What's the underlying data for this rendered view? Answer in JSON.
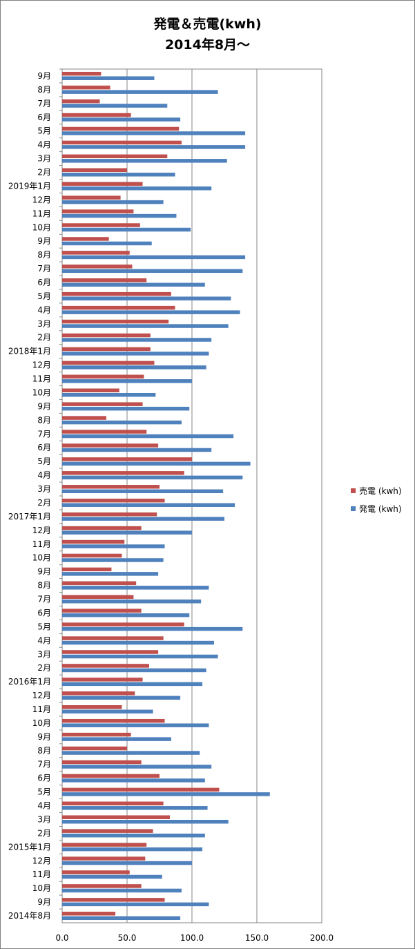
{
  "chart_data": {
    "type": "bar",
    "orientation": "horizontal",
    "title": [
      "発電＆売電(kwh)",
      "2014年8月～"
    ],
    "categories": [
      "2014年8月",
      "9月",
      "10月",
      "11月",
      "12月",
      "2015年1月",
      "2月",
      "3月",
      "4月",
      "5月",
      "6月",
      "7月",
      "8月",
      "9月",
      "10月",
      "11月",
      "12月",
      "2016年1月",
      "2月",
      "3月",
      "4月",
      "5月",
      "6月",
      "7月",
      "8月",
      "9月",
      "10月",
      "11月",
      "12月",
      "2017年1月",
      "2月",
      "3月",
      "4月",
      "5月",
      "6月",
      "7月",
      "8月",
      "9月",
      "10月",
      "11月",
      "12月",
      "2018年1月",
      "2月",
      "3月",
      "4月",
      "5月",
      "6月",
      "7月",
      "8月",
      "9月",
      "10月",
      "11月",
      "12月",
      "2019年1月",
      "2月",
      "3月",
      "4月",
      "5月",
      "6月",
      "7月",
      "8月",
      "9月"
    ],
    "series": [
      {
        "name": "売電 (kwh)",
        "color": "#c0504d",
        "values": [
          41,
          79,
          61,
          52,
          64,
          65,
          70,
          83,
          78,
          121,
          75,
          61,
          50,
          53,
          79,
          46,
          56,
          62,
          67,
          74,
          78,
          94,
          61,
          55,
          57,
          38,
          46,
          48,
          61,
          73,
          79,
          75,
          94,
          100,
          74,
          65,
          34,
          62,
          44,
          63,
          71,
          68,
          68,
          82,
          87,
          84,
          65,
          54,
          52,
          36,
          60,
          55,
          45,
          62,
          50,
          81,
          92,
          90,
          53,
          29,
          37,
          30
        ],
        "mirrored": false
      },
      {
        "name": "発電 (kwh)",
        "color": "#4f81bd",
        "values": [
          91,
          113,
          92,
          77,
          100,
          108,
          110,
          128,
          112,
          160,
          110,
          115,
          106,
          84,
          113,
          70,
          91,
          108,
          111,
          120,
          117,
          139,
          98,
          107,
          113,
          74,
          78,
          79,
          100,
          125,
          133,
          124,
          139,
          145,
          115,
          132,
          92,
          98,
          72,
          100,
          111,
          113,
          115,
          128,
          137,
          130,
          110,
          139,
          141,
          69,
          99,
          88,
          78,
          115,
          87,
          127,
          141,
          141,
          91,
          81,
          120,
          71
        ]
      }
    ],
    "xlim": [
      0,
      200
    ],
    "xticks": [
      "0.0",
      "50.0",
      "100.0",
      "150.0",
      "200.0"
    ],
    "gridlines": true,
    "legend_position": "right"
  }
}
